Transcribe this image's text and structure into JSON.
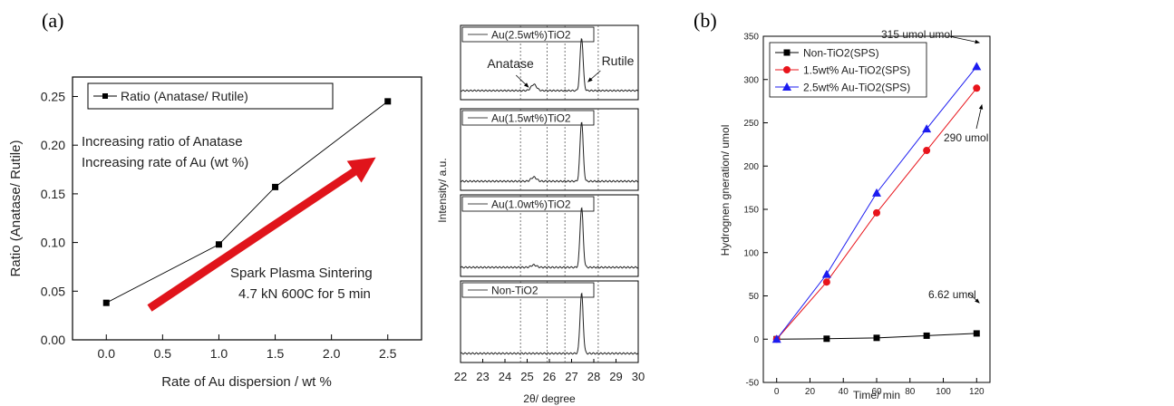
{
  "panel_a_label": "(a)",
  "panel_b_label": "(b)",
  "chart_data": [
    {
      "type": "line",
      "panel": "a-left",
      "xlabel": "Rate of Au dispersion / wt %",
      "ylabel": "Ratio (Anatase/ Rutile)",
      "xlim": [
        -0.3,
        2.8
      ],
      "ylim": [
        0.0,
        0.27
      ],
      "xticks": [
        "0.0",
        "0.5",
        "1.0",
        "1.5",
        "2.0",
        "2.5"
      ],
      "yticks": [
        "0.00",
        "0.05",
        "0.10",
        "0.15",
        "0.20",
        "0.25"
      ],
      "grid": false,
      "legend_position": "top-left",
      "series": [
        {
          "name": "Ratio (Anatase/ Rutile)",
          "color": "#000000",
          "marker": "square",
          "x": [
            0.0,
            1.0,
            1.5,
            2.5
          ],
          "y": [
            0.038,
            0.098,
            0.157,
            0.245
          ]
        }
      ],
      "annotations": {
        "line1": "Increasing ratio of Anatase",
        "line2": "Increasing rate of Au (wt %)",
        "line3": "Spark Plasma Sintering",
        "line4": "4.7 kN 600C for 5 min"
      },
      "arrow_color": "#e0141b"
    },
    {
      "type": "line",
      "panel": "a-right",
      "xlabel": "2θ/ degree",
      "ylabel": "Intensity/ a.u.",
      "xlim": [
        22,
        30
      ],
      "xticks": [
        "22",
        "23",
        "24",
        "25",
        "26",
        "27",
        "28",
        "29",
        "30"
      ],
      "reference_lines": [
        24.7,
        25.9,
        26.7,
        28.2
      ],
      "peak_labels": {
        "anatase": "Anatase",
        "rutile": "Rutile"
      },
      "series": [
        {
          "name": "Au(2.5wt%)TiO2",
          "anatase_peak": 25.3,
          "anatase_height": 0.12,
          "rutile_peak": 27.45,
          "rutile_height": 1.0
        },
        {
          "name": "Au(1.5wt%)TiO2",
          "anatase_peak": 25.3,
          "anatase_height": 0.07,
          "rutile_peak": 27.45,
          "rutile_height": 1.0
        },
        {
          "name": "Au(1.0wt%)TiO2",
          "anatase_peak": 25.3,
          "anatase_height": 0.04,
          "rutile_peak": 27.45,
          "rutile_height": 1.0
        },
        {
          "name": "Non-TiO2",
          "anatase_peak": 25.3,
          "anatase_height": 0.0,
          "rutile_peak": 27.45,
          "rutile_height": 1.0
        }
      ]
    },
    {
      "type": "line",
      "panel": "b",
      "xlabel": "Time/ min",
      "ylabel": "Hydrognen gneration/ umol",
      "xlim": [
        -8,
        128
      ],
      "ylim": [
        -50,
        350
      ],
      "xticks": [
        0,
        20,
        40,
        60,
        80,
        100,
        120
      ],
      "yticks": [
        -50,
        0,
        50,
        100,
        150,
        200,
        250,
        300,
        350
      ],
      "grid": false,
      "legend_position": "top-left",
      "series": [
        {
          "name": "Non-TiO2(SPS)",
          "color": "#000000",
          "marker": "square",
          "x": [
            0,
            30,
            60,
            90,
            120
          ],
          "y": [
            0,
            0.5,
            1.5,
            4,
            6.62
          ]
        },
        {
          "name": "1.5wt% Au-TiO2(SPS)",
          "color": "#e8141b",
          "marker": "circle",
          "x": [
            0,
            30,
            60,
            90,
            120
          ],
          "y": [
            0,
            66,
            146,
            218,
            290
          ]
        },
        {
          "name": "2.5wt% Au-TiO2(SPS)",
          "color": "#1c1cf0",
          "marker": "triangle",
          "x": [
            0,
            30,
            60,
            90,
            120
          ],
          "y": [
            0,
            75,
            169,
            243,
            315
          ]
        }
      ],
      "annotations": {
        "top": "315 umol umol",
        "mid": "290 umol",
        "low": "6.62 umol"
      }
    }
  ]
}
